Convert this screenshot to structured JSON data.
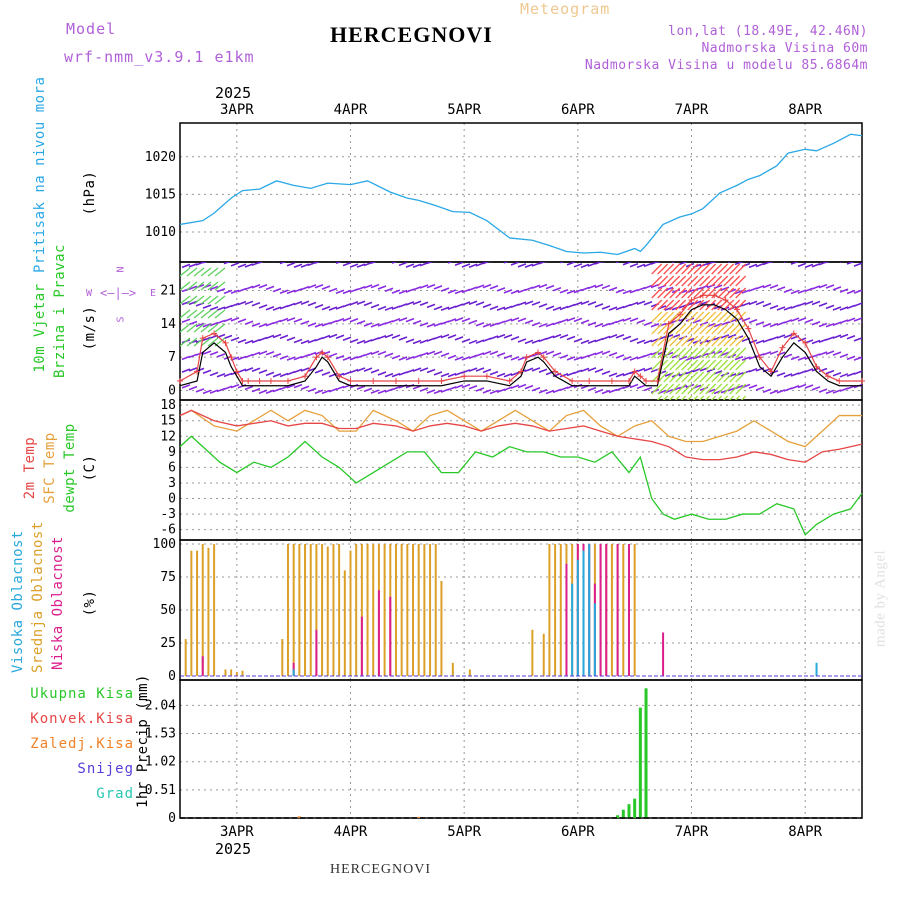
{
  "header": {
    "model_label": "Model",
    "model_name": "wrf-nmm_v3.9.1 e1km",
    "title": "HERCEGNOVI",
    "meteogram": "Meteogram",
    "lonlat": "lon,lat (18.49E, 42.46N)",
    "altitude": "Nadmorska Visina 60m",
    "model_altitude": "Nadmorska Visina u modelu 85.6864m",
    "footer_title": "HERCEGNOVI",
    "credit": "made by Angel",
    "year_top": "2025",
    "year_bottom": "2025"
  },
  "colors": {
    "pressure": "#2aa8e6",
    "t2m": "#e64646",
    "sfc": "#e6a03c",
    "dewpt": "#28c828",
    "high_cloud": "#28a8dc",
    "mid_cloud": "#dca028",
    "low_cloud": "#dc1e8c",
    "total_precip": "#28c828",
    "conv_precip": "#e64646",
    "frozen_precip": "#f08228",
    "snow": "#5a3cdc",
    "graupel": "#28c8b4",
    "wind_speed": "#000000",
    "gust": "#e64646"
  },
  "chart_data": [
    {
      "type": "line",
      "panel": "pressure",
      "ylabel": "Pritisak na nivou mora",
      "unit": "(hPa)",
      "x_ticks": [
        "3APR",
        "4APR",
        "5APR",
        "6APR",
        "7APR",
        "8APR"
      ],
      "yticks": [
        1010,
        1015,
        1020
      ],
      "ylim": [
        1006,
        1024.5
      ],
      "x_range_days": [
        -0.5,
        5.5
      ],
      "series": [
        {
          "x": [
            -0.5,
            -0.3,
            -0.2,
            -0.05,
            0.05,
            0.2,
            0.35,
            0.5,
            0.65,
            0.8,
            1.0,
            1.15,
            1.35,
            1.5,
            1.6,
            1.75,
            1.9,
            2.05,
            2.2,
            2.4,
            2.6,
            2.75,
            2.9,
            3.05,
            3.2,
            3.35,
            3.5,
            3.55,
            3.6,
            3.75,
            3.9,
            4.0,
            4.1,
            4.25,
            4.4,
            4.5,
            4.6,
            4.75,
            4.85,
            5.0,
            5.1,
            5.25,
            5.4,
            5.5
          ],
          "y": [
            1011,
            1011.5,
            1012.5,
            1014.5,
            1015.5,
            1015.7,
            1016.8,
            1016.2,
            1015.8,
            1016.5,
            1016.3,
            1016.8,
            1015.3,
            1014.5,
            1014.2,
            1013.5,
            1012.7,
            1012.6,
            1011.5,
            1009.2,
            1008.9,
            1008.2,
            1007.4,
            1007.2,
            1007.3,
            1007.0,
            1007.8,
            1007.4,
            1008.2,
            1011.0,
            1012.0,
            1012.4,
            1013.1,
            1015.2,
            1016.2,
            1017.0,
            1017.5,
            1018.8,
            1020.5,
            1021.0,
            1020.8,
            1021.8,
            1023.0,
            1022.8
          ]
        }
      ]
    },
    {
      "type": "line",
      "panel": "wind",
      "ylabel": "10m Vjetar",
      "ylabel2": "Brzina i Pravac",
      "unit": "(m/s)",
      "compass": {
        "n": "N",
        "s": "S",
        "w": "W",
        "e": "E"
      },
      "yticks": [
        0,
        7,
        14,
        21
      ],
      "ylim": [
        -2,
        27
      ],
      "series": [
        {
          "name": "speed",
          "x": [
            -0.5,
            -0.35,
            -0.3,
            -0.2,
            -0.1,
            -0.05,
            0.0,
            0.05,
            0.1,
            0.2,
            0.3,
            0.45,
            0.6,
            0.7,
            0.75,
            0.8,
            0.9,
            1.0,
            1.2,
            1.4,
            1.6,
            1.8,
            2.0,
            2.2,
            2.4,
            2.5,
            2.55,
            2.65,
            2.7,
            2.8,
            2.95,
            3.1,
            3.3,
            3.45,
            3.5,
            3.55,
            3.6,
            3.7,
            3.8,
            3.9,
            4.0,
            4.1,
            4.2,
            4.3,
            4.4,
            4.5,
            4.6,
            4.7,
            4.8,
            4.9,
            5.0,
            5.1,
            5.2,
            5.3,
            5.5
          ],
          "y": [
            1,
            2,
            8,
            10,
            8,
            5,
            3,
            1,
            1,
            1,
            1,
            1,
            2,
            5,
            7,
            6,
            2,
            1,
            1,
            1,
            1,
            1,
            2,
            2,
            1,
            3,
            6,
            7,
            6,
            3,
            1,
            1,
            1,
            1,
            3,
            2,
            1,
            1,
            12,
            14,
            17,
            18,
            18,
            17,
            15,
            11,
            5,
            3,
            7,
            10,
            8,
            4,
            2,
            1,
            1
          ]
        },
        {
          "name": "gust",
          "x": [
            -0.5,
            -0.35,
            -0.3,
            -0.2,
            -0.1,
            -0.05,
            0.0,
            0.05,
            0.1,
            0.2,
            0.3,
            0.45,
            0.6,
            0.7,
            0.75,
            0.8,
            0.9,
            1.0,
            1.2,
            1.4,
            1.6,
            1.8,
            2.0,
            2.2,
            2.4,
            2.5,
            2.55,
            2.65,
            2.7,
            2.8,
            2.95,
            3.1,
            3.3,
            3.45,
            3.5,
            3.55,
            3.6,
            3.7,
            3.8,
            3.9,
            4.0,
            4.1,
            4.2,
            4.3,
            4.4,
            4.5,
            4.6,
            4.7,
            4.8,
            4.9,
            5.0,
            5.1,
            5.2,
            5.3,
            5.5
          ],
          "y": [
            2,
            4,
            11,
            12,
            10,
            7,
            4,
            2,
            2,
            2,
            2,
            2,
            3,
            7,
            8,
            7,
            3,
            2,
            2,
            2,
            2,
            2,
            3,
            3,
            2,
            4,
            7,
            8,
            7,
            4,
            2,
            2,
            2,
            2,
            4,
            3,
            2,
            2,
            14,
            16,
            19,
            20,
            20,
            19,
            17,
            13,
            7,
            4,
            9,
            12,
            10,
            5,
            3,
            2,
            2
          ]
        }
      ]
    },
    {
      "type": "line",
      "panel": "temperature",
      "ylabel": "2m Temp",
      "ylabel2": "SFC Temp",
      "ylabel3": "dewpt Temp",
      "unit": "(C)",
      "yticks": [
        -6,
        -3,
        0,
        3,
        6,
        9,
        12,
        15,
        18
      ],
      "ylim": [
        -8,
        19
      ],
      "series": [
        {
          "name": "SFC Temp",
          "x": [
            -0.5,
            -0.4,
            -0.2,
            0.0,
            0.15,
            0.3,
            0.45,
            0.6,
            0.75,
            0.9,
            1.05,
            1.2,
            1.4,
            1.55,
            1.7,
            1.85,
            2.0,
            2.15,
            2.3,
            2.45,
            2.6,
            2.75,
            2.9,
            3.05,
            3.2,
            3.35,
            3.5,
            3.65,
            3.8,
            3.95,
            4.1,
            4.25,
            4.4,
            4.55,
            4.7,
            4.85,
            5.0,
            5.15,
            5.3,
            5.5
          ],
          "y": [
            16,
            17,
            14,
            13,
            15,
            17,
            15,
            17,
            16,
            13,
            13,
            17,
            15,
            13,
            16,
            17,
            15,
            13,
            15,
            17,
            15,
            13,
            16,
            17,
            14,
            12,
            14,
            15,
            12,
            11,
            11,
            12,
            13,
            15,
            13,
            11,
            10,
            13,
            16,
            16
          ]
        },
        {
          "name": "2m Temp",
          "x": [
            -0.5,
            -0.4,
            -0.2,
            0.0,
            0.15,
            0.3,
            0.45,
            0.6,
            0.75,
            0.9,
            1.05,
            1.2,
            1.4,
            1.55,
            1.7,
            1.85,
            2.0,
            2.15,
            2.3,
            2.45,
            2.6,
            2.75,
            2.9,
            3.05,
            3.2,
            3.35,
            3.5,
            3.65,
            3.8,
            3.95,
            4.1,
            4.25,
            4.4,
            4.55,
            4.7,
            4.85,
            5.0,
            5.15,
            5.3,
            5.5
          ],
          "y": [
            16,
            17,
            15,
            14,
            14.5,
            15,
            14,
            14.5,
            14.5,
            13.5,
            13.5,
            14.5,
            14,
            13,
            14,
            14.5,
            14,
            13,
            14,
            14.5,
            14,
            13,
            13.5,
            14,
            13,
            12,
            11.5,
            11,
            10,
            8,
            7.5,
            7.5,
            8,
            9,
            8.5,
            7.5,
            7,
            9,
            9.5,
            10.5
          ]
        },
        {
          "name": "dewpt Temp",
          "x": [
            -0.5,
            -0.4,
            -0.3,
            -0.15,
            0.0,
            0.15,
            0.3,
            0.45,
            0.6,
            0.75,
            0.9,
            1.05,
            1.2,
            1.35,
            1.5,
            1.65,
            1.8,
            1.95,
            2.1,
            2.25,
            2.4,
            2.55,
            2.7,
            2.85,
            3.0,
            3.15,
            3.3,
            3.45,
            3.55,
            3.65,
            3.75,
            3.85,
            4.0,
            4.15,
            4.3,
            4.45,
            4.6,
            4.75,
            4.9,
            5.0,
            5.1,
            5.25,
            5.4,
            5.5
          ],
          "y": [
            10,
            12,
            10,
            7,
            5,
            7,
            6,
            8,
            11,
            8,
            6,
            3,
            5,
            7,
            9,
            9,
            5,
            5,
            9,
            8,
            10,
            9,
            9,
            8,
            8,
            7,
            9,
            5,
            8,
            0,
            -3,
            -4,
            -3,
            -4,
            -4,
            -3,
            -3,
            -1,
            -2,
            -7,
            -5,
            -3,
            -2,
            1
          ]
        }
      ]
    },
    {
      "type": "bar",
      "panel": "clouds",
      "ylabel": "Visoka Oblacnost",
      "ylabel2": "Srednja Oblacnost",
      "ylabel3": "Niska Oblacnost",
      "unit": "(%)",
      "yticks": [
        0,
        25,
        50,
        75,
        100
      ],
      "ylim": [
        -3,
        103
      ],
      "series": [
        {
          "name": "Srednja Oblacnost",
          "x": [
            -0.45,
            -0.4,
            -0.35,
            -0.3,
            -0.25,
            -0.2,
            -0.1,
            -0.05,
            0.0,
            0.05,
            0.4,
            0.45,
            0.5,
            0.55,
            0.6,
            0.65,
            0.7,
            0.75,
            0.8,
            0.85,
            0.9,
            0.95,
            1.0,
            1.05,
            1.1,
            1.15,
            1.2,
            1.25,
            1.3,
            1.35,
            1.4,
            1.45,
            1.5,
            1.55,
            1.6,
            1.65,
            1.7,
            1.75,
            1.8,
            1.9,
            2.05,
            2.6,
            2.7,
            2.75,
            2.8,
            2.85,
            2.9,
            2.95,
            3.0,
            3.05,
            3.1,
            3.15,
            3.2,
            3.25,
            3.3,
            3.35,
            3.4,
            3.45,
            3.5
          ],
          "y": [
            28,
            95,
            95,
            100,
            97,
            100,
            5,
            5,
            3,
            4,
            28,
            100,
            100,
            100,
            100,
            100,
            100,
            100,
            98,
            100,
            100,
            80,
            95,
            100,
            100,
            100,
            100,
            100,
            100,
            100,
            100,
            100,
            100,
            100,
            100,
            100,
            100,
            100,
            72,
            10,
            5,
            35,
            32,
            100,
            100,
            100,
            100,
            100,
            100,
            100,
            100,
            100,
            100,
            100,
            100,
            100,
            100,
            100,
            100
          ]
        },
        {
          "name": "Niska Oblacnost",
          "x": [
            -0.3,
            0.5,
            0.7,
            1.1,
            1.25,
            1.35,
            2.9,
            3.0,
            3.05,
            3.1,
            3.15,
            3.2,
            3.25,
            3.35,
            3.45,
            3.75
          ],
          "y": [
            15,
            10,
            35,
            45,
            65,
            60,
            85,
            100,
            100,
            100,
            70,
            100,
            100,
            100,
            100,
            33
          ]
        },
        {
          "name": "Visoka Oblacnost",
          "x": [
            0.5,
            2.95,
            3.0,
            3.05,
            3.1,
            3.15,
            5.1
          ],
          "y": [
            5,
            70,
            88,
            95,
            100,
            55,
            10
          ]
        }
      ]
    },
    {
      "type": "bar",
      "panel": "precipitation",
      "ylabel": "1hr Precip",
      "unit": "(mm)",
      "legend": [
        "Ukupna Kisa",
        "Konvek.Kisa",
        "Zaledj.Kisa",
        "Snijeg",
        "Grad"
      ],
      "yticks": [
        0,
        0.51,
        1.02,
        1.53,
        2.04
      ],
      "ylim": [
        0,
        2.5
      ],
      "series": [
        {
          "name": "Ukupna Kisa",
          "x": [
            3.35,
            3.4,
            3.45,
            3.5,
            3.55,
            3.6
          ],
          "y": [
            0.05,
            0.15,
            0.25,
            0.35,
            2.0,
            2.35
          ]
        },
        {
          "name": "Zaledj.Kisa",
          "x": [
            0.55,
            1.6
          ],
          "y": [
            0.03,
            0.02
          ]
        }
      ]
    }
  ]
}
